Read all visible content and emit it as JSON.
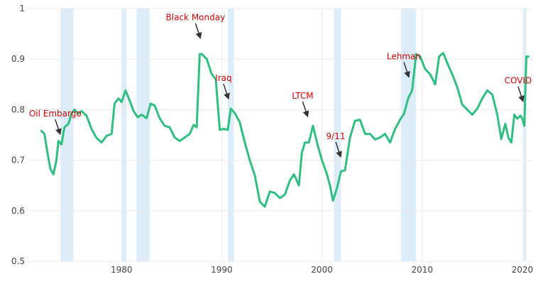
{
  "chart_data": {
    "type": "line",
    "title": "",
    "xlabel": "",
    "ylabel": "",
    "xlim": [
      1970.7,
      2021.0
    ],
    "ylim": [
      0.5,
      1.0
    ],
    "x_ticks": [
      1980,
      1990,
      2000,
      2010,
      2020
    ],
    "y_ticks": [
      0.5,
      0.6,
      0.7,
      0.8,
      0.9,
      1.0
    ],
    "y_tick_labels": [
      "0.5",
      "0.6",
      "0.7",
      "0.8",
      "0.9",
      "1"
    ],
    "grid": true,
    "line_color": "#2fbf80",
    "recession_color": "#dcecf8",
    "annotation_color": "#e00000",
    "recessions": [
      [
        1973.9,
        1975.2
      ],
      [
        1980.0,
        1980.5
      ],
      [
        1981.5,
        1982.8
      ],
      [
        1990.6,
        1991.2
      ],
      [
        2001.2,
        2001.9
      ],
      [
        2007.9,
        2009.4
      ],
      [
        2020.1,
        2020.4
      ]
    ],
    "series": [
      {
        "x": [
          1972.0,
          1972.3,
          1972.6,
          1972.9,
          1973.2,
          1973.5,
          1973.7,
          1974.0,
          1974.3,
          1974.7,
          1975.0,
          1975.3,
          1975.7,
          1976.0,
          1976.5,
          1977.0,
          1977.5,
          1978.0,
          1978.5,
          1979.0,
          1979.3,
          1979.7,
          1980.0,
          1980.4,
          1980.8,
          1981.2,
          1981.6,
          1982.0,
          1982.5,
          1982.9,
          1983.3,
          1983.8,
          1984.3,
          1984.8,
          1985.3,
          1985.8,
          1986.3,
          1986.8,
          1987.2,
          1987.5,
          1987.8,
          1988.0,
          1988.5,
          1989.0,
          1989.4,
          1989.8,
          1990.2,
          1990.6,
          1990.9,
          1991.3,
          1991.8,
          1992.3,
          1992.8,
          1993.3,
          1993.8,
          1994.3,
          1994.8,
          1995.3,
          1995.8,
          1996.3,
          1996.8,
          1997.2,
          1997.7,
          1998.0,
          1998.3,
          1998.7,
          1999.1,
          1999.6,
          2000.0,
          2000.5,
          2000.8,
          2001.1,
          2001.5,
          2001.9,
          2002.3,
          2002.8,
          2003.3,
          2003.8,
          2004.3,
          2004.8,
          2005.3,
          2005.8,
          2006.3,
          2006.8,
          2007.3,
          2007.8,
          2008.2,
          2008.6,
          2009.0,
          2009.4,
          2009.8,
          2010.3,
          2010.8,
          2011.3,
          2011.7,
          2012.1,
          2012.6,
          2013.0,
          2013.5,
          2014.0,
          2014.5,
          2015.0,
          2015.5,
          2016.0,
          2016.5,
          2017.0,
          2017.5,
          2017.9,
          2018.3,
          2018.6,
          2018.9,
          2019.2,
          2019.5,
          2019.8,
          2020.0,
          2020.2,
          2020.4,
          2020.6
        ],
        "y": [
          0.758,
          0.752,
          0.715,
          0.682,
          0.672,
          0.7,
          0.738,
          0.731,
          0.765,
          0.772,
          0.792,
          0.8,
          0.792,
          0.797,
          0.788,
          0.762,
          0.744,
          0.735,
          0.748,
          0.752,
          0.812,
          0.822,
          0.815,
          0.838,
          0.818,
          0.797,
          0.785,
          0.79,
          0.783,
          0.812,
          0.808,
          0.783,
          0.768,
          0.765,
          0.745,
          0.738,
          0.745,
          0.752,
          0.77,
          0.765,
          0.91,
          0.91,
          0.9,
          0.87,
          0.86,
          0.76,
          0.762,
          0.76,
          0.802,
          0.793,
          0.775,
          0.735,
          0.7,
          0.67,
          0.618,
          0.608,
          0.638,
          0.635,
          0.625,
          0.632,
          0.66,
          0.672,
          0.65,
          0.715,
          0.735,
          0.735,
          0.768,
          0.728,
          0.7,
          0.672,
          0.65,
          0.62,
          0.645,
          0.678,
          0.68,
          0.745,
          0.778,
          0.78,
          0.752,
          0.752,
          0.741,
          0.745,
          0.752,
          0.735,
          0.762,
          0.78,
          0.792,
          0.822,
          0.838,
          0.91,
          0.905,
          0.88,
          0.87,
          0.85,
          0.905,
          0.912,
          0.888,
          0.87,
          0.845,
          0.81,
          0.8,
          0.79,
          0.802,
          0.822,
          0.838,
          0.83,
          0.79,
          0.742,
          0.772,
          0.745,
          0.735,
          0.79,
          0.782,
          0.788,
          0.782,
          0.768,
          0.905,
          0.905
        ]
      }
    ],
    "annotations": [
      {
        "text": "Oil Embargo",
        "x": 1973.8,
        "y": 0.75
      },
      {
        "text": "Black Monday",
        "x": 1987.8,
        "y": 0.94
      },
      {
        "text": "Iraq",
        "x": 1990.6,
        "y": 0.82
      },
      {
        "text": "LTCM",
        "x": 1998.5,
        "y": 0.785
      },
      {
        "text": "9/11",
        "x": 2001.8,
        "y": 0.705
      },
      {
        "text": "Lehman",
        "x": 2008.6,
        "y": 0.863
      },
      {
        "text": "COVID",
        "x": 2020.0,
        "y": 0.815
      }
    ]
  }
}
